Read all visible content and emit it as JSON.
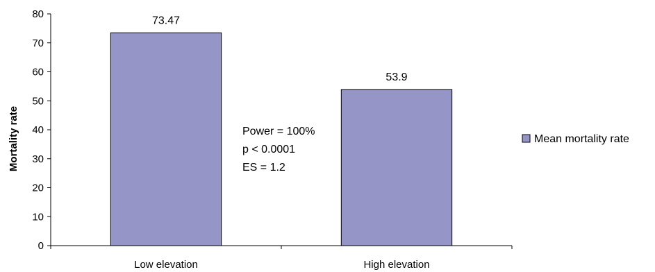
{
  "chart_data": {
    "type": "bar",
    "categories": [
      "Low elevation",
      "High elevation"
    ],
    "series": [
      {
        "name": "Mean mortality rate",
        "values": [
          73.47,
          53.9
        ],
        "color": "#9595c8"
      }
    ],
    "data_labels": [
      "73.47",
      "53.9"
    ],
    "xlabel": "",
    "ylabel": "Mortality rate",
    "ylim": [
      0,
      80
    ],
    "yticks": [
      0,
      10,
      20,
      30,
      40,
      50,
      60,
      70,
      80
    ],
    "grid": false,
    "legend_position": "right",
    "annotation": [
      "Power = 100%",
      "p < 0.0001",
      "ES = 1.2"
    ]
  }
}
